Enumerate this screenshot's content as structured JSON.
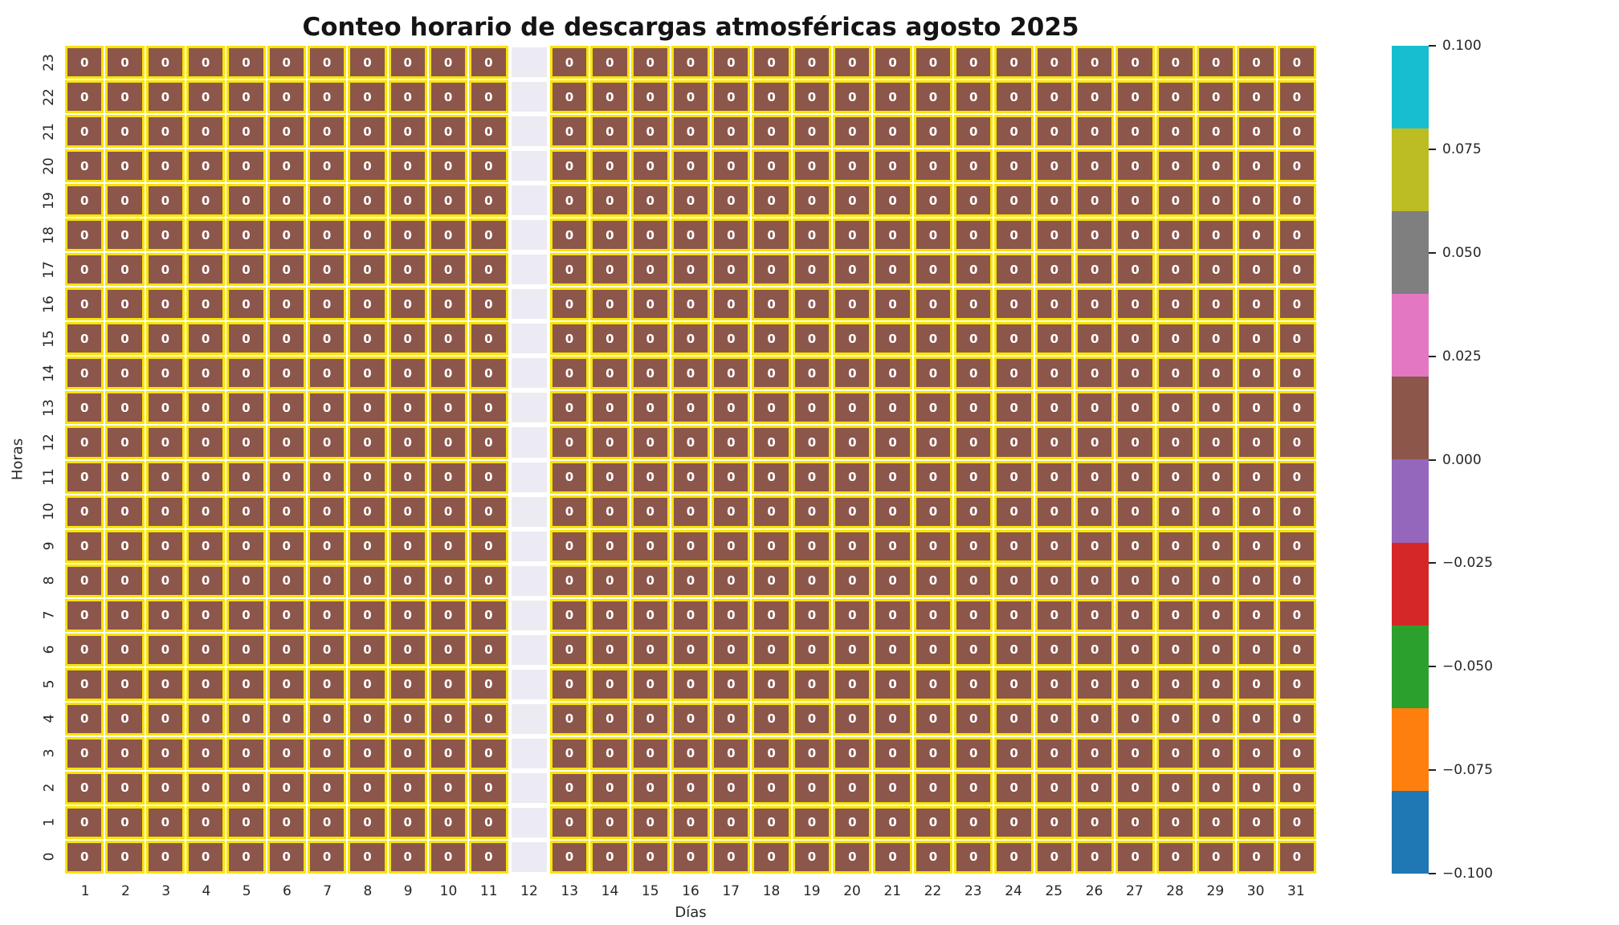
{
  "chart_data": {
    "type": "heatmap",
    "title": "Conteo horario de descargas atmosféricas agosto 2025",
    "xlabel": "Días",
    "ylabel": "Horas",
    "x_categories": [
      "1",
      "2",
      "3",
      "4",
      "5",
      "6",
      "7",
      "8",
      "9",
      "10",
      "11",
      "12",
      "13",
      "14",
      "15",
      "16",
      "17",
      "18",
      "19",
      "20",
      "21",
      "22",
      "23",
      "24",
      "25",
      "26",
      "27",
      "28",
      "29",
      "30",
      "31"
    ],
    "y_categories_top_to_bottom": [
      "23",
      "22",
      "21",
      "20",
      "19",
      "18",
      "17",
      "16",
      "15",
      "14",
      "13",
      "12",
      "11",
      "10",
      "9",
      "8",
      "7",
      "6",
      "5",
      "4",
      "3",
      "2",
      "1",
      "0"
    ],
    "rows": 24,
    "cols": 31,
    "constant_cell_value": 0,
    "annotation": "0",
    "missing_x": [
      "12"
    ],
    "values_description": "Every cell value is 0 for all 24 hours of every day in August 2025, except day 12 which is missing (blank/NaN column).",
    "cell_color": "#8c564b",
    "cell_border_color": "#f8e400",
    "missing_cell_color": "#eceaf3",
    "annotation_text_color": "#ffffff",
    "grid_on": false,
    "legend_position": "none",
    "colorbar": {
      "vmin": -0.1,
      "vmax": 0.1,
      "ticks_top_to_bottom": [
        "0.100",
        "0.075",
        "0.050",
        "0.025",
        "0.000",
        "−0.025",
        "−0.050",
        "−0.075",
        "−0.100"
      ],
      "segment_colors_top_to_bottom": [
        "#17becf",
        "#bcbd22",
        "#7f7f7f",
        "#e377c2",
        "#8c564b",
        "#9467bd",
        "#d62728",
        "#2ca02c",
        "#ff7f0e",
        "#1f77b4"
      ]
    }
  }
}
